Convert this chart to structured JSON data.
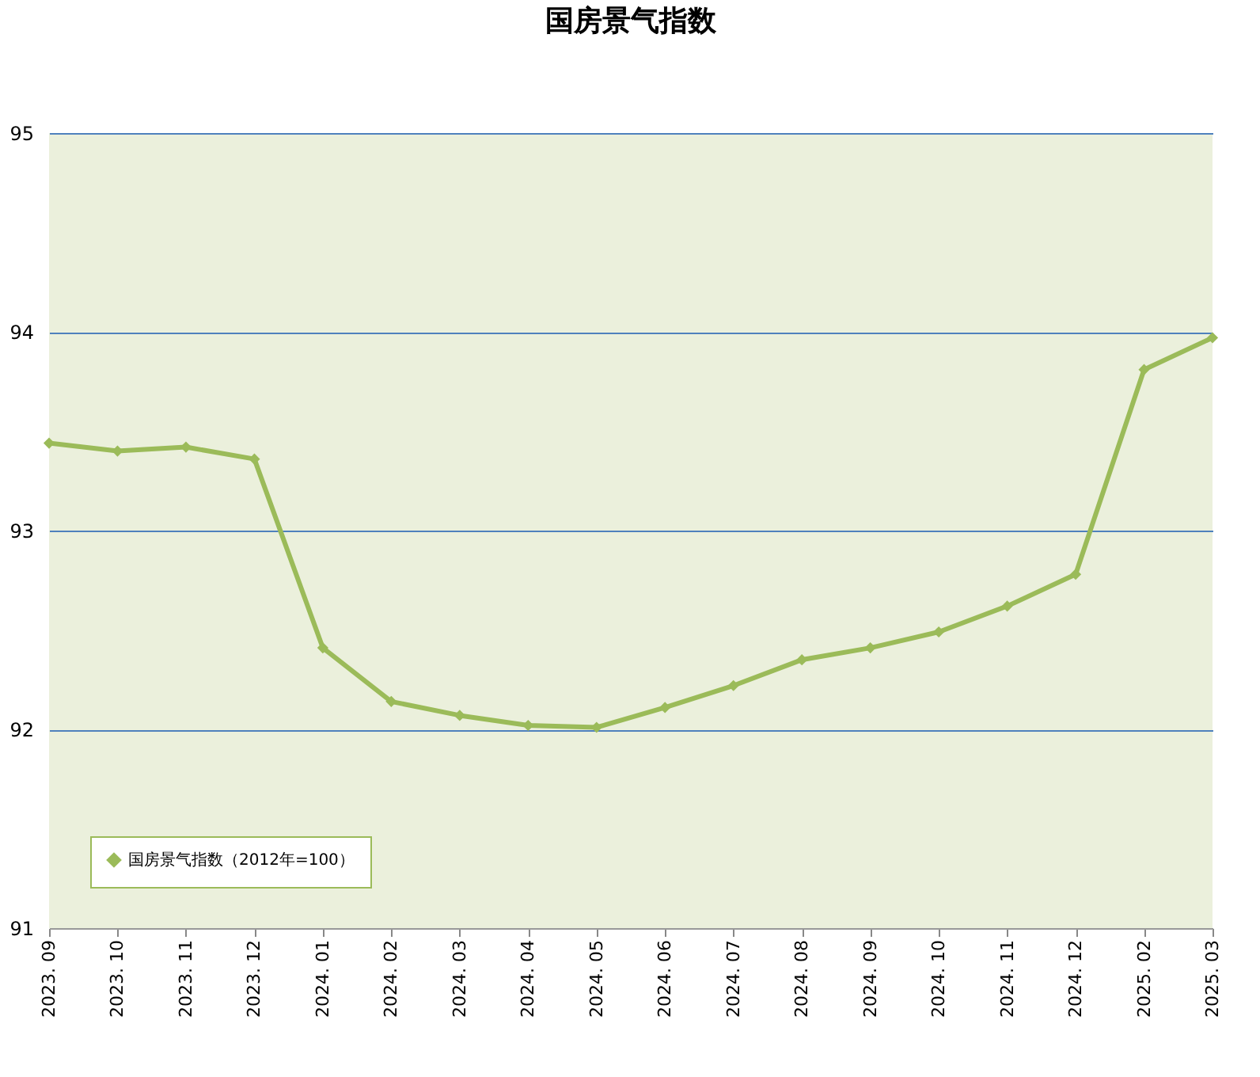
{
  "chart_data": {
    "type": "line",
    "title": "国房景气指数",
    "categories": [
      "2023. 09",
      "2023. 10",
      "2023. 11",
      "2023. 12",
      "2024. 01",
      "2024. 02",
      "2024. 03",
      "2024. 04",
      "2024. 05",
      "2024. 06",
      "2024. 07",
      "2024. 08",
      "2024. 09",
      "2024. 10",
      "2024. 11",
      "2024. 12",
      "2025. 02",
      "2025. 03"
    ],
    "series": [
      {
        "name": "国房景气指数（2012年=100）",
        "color": "#9bbb59",
        "values": [
          93.44,
          93.4,
          93.42,
          93.36,
          92.41,
          92.14,
          92.07,
          92.02,
          92.01,
          92.11,
          92.22,
          92.35,
          92.41,
          92.49,
          92.62,
          92.78,
          93.81,
          93.97
        ]
      }
    ],
    "ylim": [
      91,
      95
    ],
    "yticks": [
      91,
      92,
      93,
      94,
      95
    ],
    "grid": "y",
    "legend": "bottom left",
    "marker": "diamond",
    "line_style": "solid"
  }
}
